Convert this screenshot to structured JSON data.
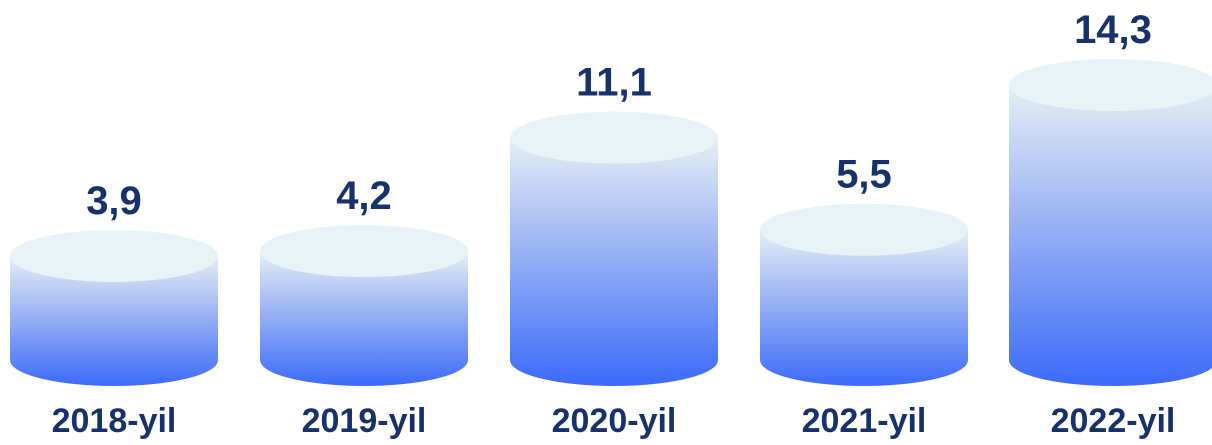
{
  "chart_data": {
    "type": "bar",
    "style": "3d-cylinder",
    "categories": [
      "2018-yil",
      "2019-yil",
      "2020-yil",
      "2021-yil",
      "2022-yil"
    ],
    "values": [
      3.9,
      4.2,
      11.1,
      5.5,
      14.3
    ],
    "value_labels": [
      "3,9",
      "4,2",
      "11,1",
      "5,5",
      "14,3"
    ],
    "grid": false,
    "legend": "none"
  },
  "colors": {
    "bar_top": "#e4eff4",
    "bar_mid": "#9bb3f4",
    "bar_bottom": "#3b6afa",
    "cap": "#e8f3f7",
    "label": "#17306e"
  }
}
